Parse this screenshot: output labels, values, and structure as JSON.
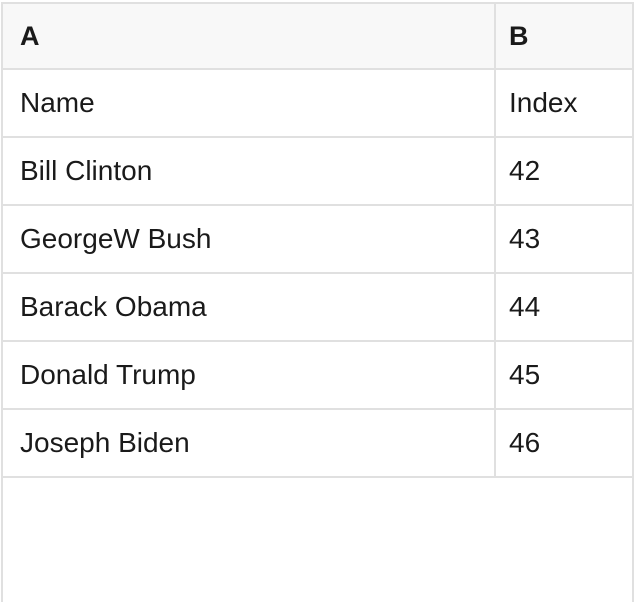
{
  "table": {
    "column_headers": [
      {
        "label": "A"
      },
      {
        "label": "B"
      }
    ],
    "rows": [
      {
        "cells": [
          "Name",
          "Index"
        ]
      },
      {
        "cells": [
          "Bill Clinton",
          "42"
        ]
      },
      {
        "cells": [
          "GeorgeW Bush",
          "43"
        ]
      },
      {
        "cells": [
          "Barack Obama",
          "44"
        ]
      },
      {
        "cells": [
          "Donald Trump",
          "45"
        ]
      },
      {
        "cells": [
          "Joseph Biden",
          "46"
        ]
      }
    ]
  },
  "colors": {
    "header_bg": "#f8f8f8",
    "grid_border": "#e0e0e0",
    "text": "#1a1a1a",
    "row_bg": "#ffffff"
  }
}
